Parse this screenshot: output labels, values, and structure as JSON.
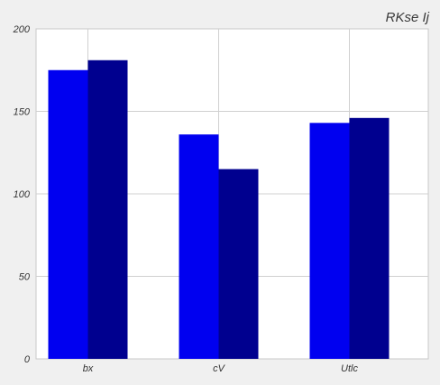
{
  "chart_data": {
    "type": "bar",
    "title": "RKse Ij",
    "xlabel": "",
    "ylabel": "",
    "categories": [
      "bx",
      "cV",
      "Utlc"
    ],
    "series": [
      {
        "values": [
          175,
          136,
          143
        ],
        "color": "#0000f0"
      },
      {
        "values": [
          181,
          115,
          146
        ],
        "color": "#00008f"
      }
    ],
    "ylim": [
      0,
      200
    ],
    "yticks": [
      0,
      50,
      100,
      150,
      200
    ],
    "grid": true,
    "colors": {
      "background": "#f0f0f0",
      "plot_background": "#ffffff",
      "grid": "#d0d0d0"
    }
  }
}
